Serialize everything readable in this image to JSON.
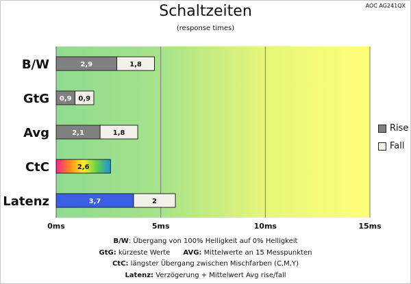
{
  "model": "AOC AG241QX",
  "chart_data": {
    "type": "bar",
    "orientation": "horizontal",
    "stacked": true,
    "title": "Schaltzeiten",
    "subtitle": "(response times)",
    "categories": [
      "B/W",
      "GtG",
      "Avg",
      "CtC",
      "Latenz"
    ],
    "series": [
      {
        "name": "Rise",
        "values": [
          2.9,
          0.9,
          2.1,
          2.6,
          3.7
        ],
        "labels": [
          "2,9",
          "0,9",
          "2,1",
          "2,6",
          "3,7"
        ]
      },
      {
        "name": "Fall",
        "values": [
          1.8,
          0.9,
          1.8,
          null,
          2
        ],
        "labels": [
          "1,8",
          "0,9",
          "1,8",
          "",
          "2"
        ]
      }
    ],
    "xlim": [
      0,
      15
    ],
    "xticks": [
      0,
      5,
      10,
      15
    ],
    "xtick_labels": [
      "0ms",
      "5ms",
      "10ms",
      "15ms"
    ],
    "gridlines_x": true,
    "background": "gradient green to yellow",
    "legend_position": "right",
    "colors": {
      "rise": "#808080",
      "fall": "#f2f2ea",
      "latenz": "#3a5fe6",
      "bg_green": "#8fdb8f",
      "bg_yellow": "#ffff77"
    }
  },
  "legend": {
    "rise": "Rise",
    "fall": "Fall"
  },
  "notes": [
    {
      "key": "B/W",
      "text": ":  Übergang von 100% Helligkeit auf 0% Helligkeit"
    },
    {
      "key": "GtG:",
      "text": " kürzeste  Werte",
      "key2": "AVG:",
      "text2": " Mittelwerte  an 15 Messpunkten"
    },
    {
      "key": "CtC:",
      "text": " längster Übergang  zwischen Mischfarben  (C,M,Y)"
    },
    {
      "key": "Latenz:",
      "text": " Verzögerung  + Mittelwert  Avg rise/fall"
    }
  ]
}
